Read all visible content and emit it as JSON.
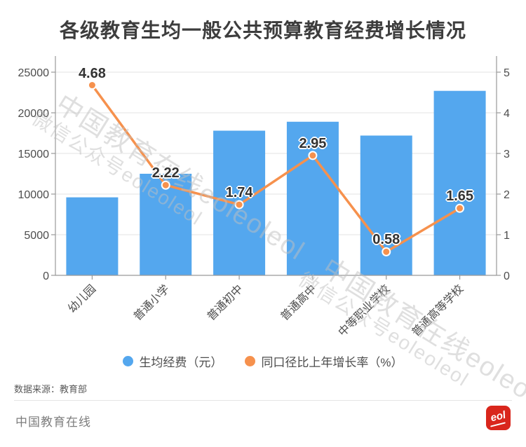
{
  "title": "各级教育生均一般公共预算教育经费增长情况",
  "chart_data": {
    "type": "bar",
    "subtype": "bar-line-combo",
    "title": "各级教育生均一般公共预算教育经费增长情况",
    "categories": [
      "幼儿园",
      "普通小学",
      "普通初中",
      "普通高中",
      "中等职业学校",
      "普通高等学校"
    ],
    "series": [
      {
        "name": "生均经费（元）",
        "type": "bar",
        "y_axis": "left",
        "color": "#54a7ee",
        "values": [
          9600,
          12500,
          17800,
          18900,
          17200,
          22700
        ]
      },
      {
        "name": "同口径比上年增长率（%）",
        "type": "line",
        "y_axis": "right",
        "color": "#f6914d",
        "values": [
          4.68,
          2.22,
          1.74,
          2.95,
          0.58,
          1.65
        ],
        "labels": [
          "4.68",
          "2.22",
          "1.74",
          "2.95",
          "0.58",
          "1.65"
        ]
      }
    ],
    "left_axis": {
      "min": 0,
      "max": 25000,
      "tick_step": 5000,
      "tick_labels": [
        "0",
        "5000",
        "10000",
        "15000",
        "20000",
        "25000"
      ]
    },
    "right_axis": {
      "min": 0,
      "max": 5,
      "tick_step": 1,
      "tick_labels": [
        "0",
        "1",
        "2",
        "3",
        "4",
        "5"
      ]
    },
    "grid": true,
    "legend_position": "bottom",
    "xlabel": "",
    "ylabel": ""
  },
  "legend": {
    "items": [
      {
        "label": "生均经费（元）",
        "color": "#54a7ee"
      },
      {
        "label": "同口径比上年增长率（%）",
        "color": "#f6914d"
      }
    ]
  },
  "watermark": {
    "items": [
      {
        "text": "中国教育在线eoleoleol",
        "size": "large"
      },
      {
        "text": "微信公众号eoleoleol",
        "size": "small"
      },
      {
        "text": "中国教育在线eoleoleol",
        "size": "large"
      },
      {
        "text": "微信公众号eoleoleol",
        "size": "small"
      }
    ]
  },
  "footer": {
    "source": "数据来源：教育部",
    "brand": "中国教育在线",
    "logo_text": "eol",
    "logo_color": "#d9261c"
  },
  "colors": {
    "bar": "#54a7ee",
    "line": "#f6914d",
    "grid": "#e3e3e3",
    "axis": "#999999",
    "tick_text": "#4d4d4d",
    "title_text": "#3d3d3d",
    "point_label_text": "#333333",
    "watermark": "#c0c0c0",
    "logo_red": "#d9261c"
  }
}
